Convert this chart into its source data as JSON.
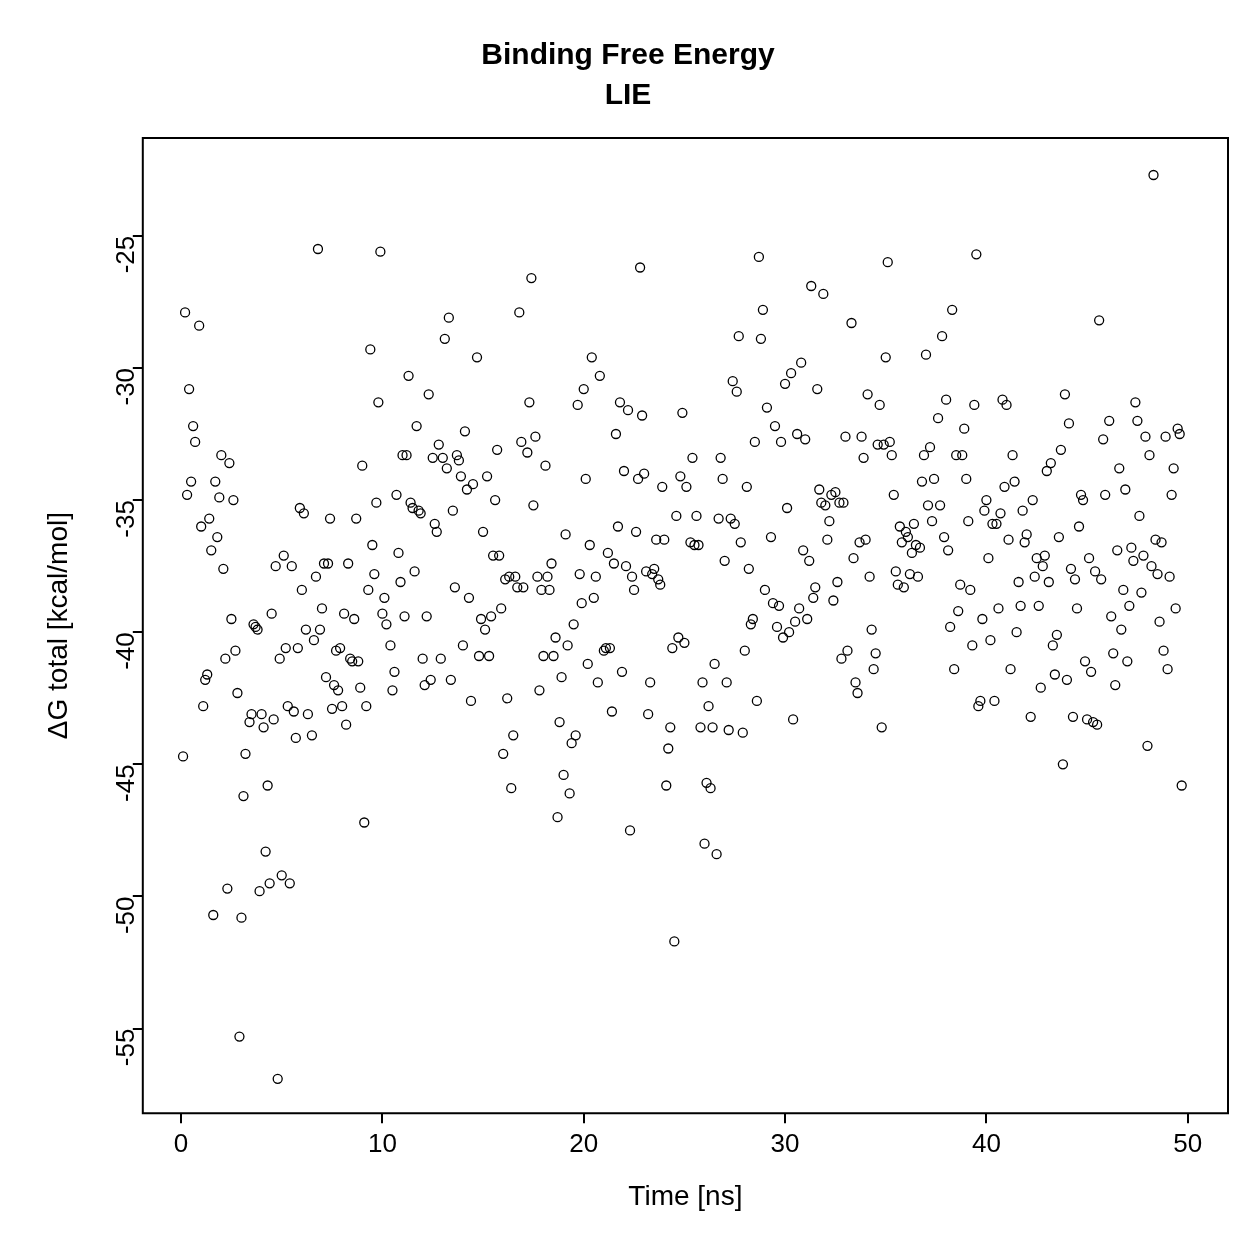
{
  "chart_data": {
    "type": "scatter",
    "title": "Binding Free Energy",
    "subtitle": "LIE",
    "xlabel": "Time [ns]",
    "ylabel": "ΔG total [kcal/mol]",
    "xlim": [
      -1.9,
      52
    ],
    "ylim": [
      -58.2,
      -21.3
    ],
    "xticks": [
      0,
      10,
      20,
      30,
      40,
      50
    ],
    "yticks": [
      -55,
      -50,
      -45,
      -40,
      -35,
      -30,
      -25
    ],
    "marker": "circle",
    "series": [
      {
        "color": "#000000",
        "x": [
          0.1,
          0.2,
          0.3,
          0.4,
          0.5,
          0.6,
          0.7,
          0.9,
          1.0,
          1.1,
          1.2,
          1.3,
          1.4,
          1.5,
          1.6,
          1.7,
          1.8,
          1.9,
          2.0,
          2.1,
          2.2,
          2.3,
          2.4,
          2.5,
          2.6,
          2.7,
          2.8,
          2.9,
          3.0,
          3.1,
          3.2,
          3.4,
          3.5,
          3.6,
          3.7,
          3.8,
          3.9,
          4.0,
          4.1,
          4.2,
          4.3,
          4.4,
          4.5,
          4.6,
          4.7,
          4.8,
          4.9,
          5.0,
          5.1,
          5.2,
          5.3,
          5.4,
          5.5,
          5.6,
          5.7,
          5.8,
          5.9,
          6.0,
          6.1,
          6.2,
          6.3,
          6.5,
          6.6,
          6.7,
          6.8,
          6.9,
          7.0,
          7.1,
          7.2,
          7.3,
          7.4,
          7.5,
          7.6,
          7.7,
          7.8,
          7.9,
          8.0,
          8.1,
          8.2,
          8.3,
          8.4,
          8.5,
          8.6,
          8.7,
          8.8,
          8.9,
          9.0,
          9.1,
          9.2,
          9.3,
          9.4,
          9.5,
          9.6,
          9.7,
          9.8,
          9.9,
          10.0,
          10.1,
          10.2,
          10.4,
          10.5,
          10.6,
          10.7,
          10.8,
          10.9,
          11.0,
          11.1,
          11.2,
          11.3,
          11.4,
          11.5,
          11.6,
          11.7,
          11.8,
          11.9,
          12.0,
          12.1,
          12.2,
          12.3,
          12.4,
          12.5,
          12.6,
          12.7,
          12.8,
          12.9,
          13.0,
          13.1,
          13.2,
          13.3,
          13.4,
          13.5,
          13.6,
          13.7,
          13.8,
          13.9,
          14.0,
          14.1,
          14.2,
          14.3,
          14.4,
          14.5,
          14.7,
          14.8,
          14.9,
          15.0,
          15.1,
          15.2,
          15.3,
          15.4,
          15.5,
          15.6,
          15.7,
          15.8,
          15.9,
          16.0,
          16.1,
          16.2,
          16.3,
          16.4,
          16.5,
          16.6,
          16.7,
          16.8,
          16.9,
          17.0,
          17.2,
          17.3,
          17.4,
          17.5,
          17.6,
          17.7,
          17.8,
          17.9,
          18.0,
          18.1,
          18.2,
          18.3,
          18.4,
          18.5,
          18.6,
          18.7,
          18.8,
          18.9,
          19.0,
          19.1,
          19.2,
          19.3,
          19.4,
          19.5,
          19.6,
          19.7,
          19.8,
          19.9,
          20.0,
          20.1,
          20.2,
          20.3,
          20.4,
          20.5,
          20.6,
          20.7,
          20.8,
          21.0,
          21.1,
          21.2,
          21.3,
          21.4,
          21.5,
          21.6,
          21.7,
          21.8,
          21.9,
          22.0,
          22.1,
          22.2,
          22.3,
          22.4,
          22.5,
          22.6,
          22.7,
          22.8,
          22.9,
          23.0,
          23.1,
          23.2,
          23.3,
          23.4,
          23.5,
          23.6,
          23.7,
          23.8,
          23.9,
          24.0,
          24.1,
          24.2,
          24.3,
          24.4,
          24.5,
          24.6,
          24.7,
          24.8,
          24.9,
          25.0,
          25.1,
          25.3,
          25.4,
          25.5,
          25.6,
          25.7,
          25.8,
          25.9,
          26.0,
          26.1,
          26.2,
          26.3,
          26.4,
          26.5,
          26.6,
          26.7,
          26.8,
          26.9,
          27.0,
          27.1,
          27.2,
          27.3,
          27.4,
          27.5,
          27.6,
          27.7,
          27.8,
          27.9,
          28.0,
          28.1,
          28.2,
          28.3,
          28.4,
          28.5,
          28.6,
          28.7,
          28.8,
          28.9,
          29.0,
          29.1,
          29.3,
          29.4,
          29.5,
          29.6,
          29.7,
          29.8,
          29.9,
          30.0,
          30.1,
          30.2,
          30.3,
          30.4,
          30.5,
          30.6,
          30.7,
          30.8,
          30.9,
          31.0,
          31.1,
          31.2,
          31.3,
          31.4,
          31.5,
          31.6,
          31.7,
          31.8,
          31.9,
          32.0,
          32.1,
          32.2,
          32.3,
          32.4,
          32.5,
          32.6,
          32.7,
          32.8,
          32.9,
          33.0,
          33.1,
          33.3,
          33.4,
          33.5,
          33.6,
          33.7,
          33.8,
          33.9,
          34.0,
          34.1,
          34.2,
          34.3,
          34.4,
          34.5,
          34.6,
          34.7,
          34.8,
          34.9,
          35.0,
          35.1,
          35.2,
          35.3,
          35.4,
          35.5,
          35.6,
          35.7,
          35.8,
          35.9,
          36.0,
          36.1,
          36.2,
          36.3,
          36.4,
          36.5,
          36.6,
          36.7,
          36.8,
          36.9,
          37.0,
          37.1,
          37.2,
          37.3,
          37.4,
          37.6,
          37.7,
          37.8,
          37.9,
          38.0,
          38.1,
          38.2,
          38.3,
          38.4,
          38.5,
          38.6,
          38.7,
          38.8,
          38.9,
          39.0,
          39.1,
          39.2,
          39.3,
          39.4,
          39.5,
          39.6,
          39.7,
          39.8,
          39.9,
          40.0,
          40.1,
          40.2,
          40.3,
          40.4,
          40.5,
          40.6,
          40.7,
          40.8,
          40.9,
          41.0,
          41.1,
          41.2,
          41.3,
          41.4,
          41.5,
          41.6,
          41.7,
          41.8,
          41.9,
          42.0,
          42.2,
          42.3,
          42.4,
          42.5,
          42.6,
          42.7,
          42.8,
          42.9,
          43.0,
          43.1,
          43.2,
          43.3,
          43.4,
          43.5,
          43.6,
          43.7,
          43.8,
          43.9,
          44.0,
          44.1,
          44.2,
          44.3,
          44.4,
          44.5,
          44.6,
          44.7,
          44.8,
          44.9,
          45.0,
          45.1,
          45.2,
          45.3,
          45.4,
          45.5,
          45.6,
          45.7,
          45.8,
          45.9,
          46.1,
          46.2,
          46.3,
          46.4,
          46.5,
          46.6,
          46.7,
          46.8,
          46.9,
          47.0,
          47.1,
          47.2,
          47.3,
          47.4,
          47.5,
          47.6,
          47.7,
          47.8,
          47.9,
          48.0,
          48.1,
          48.2,
          48.3,
          48.4,
          48.5,
          48.6,
          48.7,
          48.8,
          48.9,
          49.0,
          49.1,
          49.2,
          49.3,
          49.4,
          49.5,
          49.6,
          49.7
        ],
        "values": [
          -44.7,
          -27.9,
          -34.8,
          -30.8,
          -34.3,
          -32.2,
          -32.8,
          -28.4,
          -36.0,
          -42.8,
          -41.8,
          -41.6,
          -35.7,
          -36.9,
          -50.7,
          -34.3,
          -36.4,
          -34.9,
          -33.3,
          -37.6,
          -41.0,
          -49.7,
          -33.6,
          -39.5,
          -35.0,
          -40.7,
          -42.3,
          -55.3,
          -50.8,
          -46.2,
          -44.6,
          -43.4,
          -43.1,
          -39.7,
          -39.8,
          -39.9,
          -49.8,
          -43.1,
          -43.6,
          -48.3,
          -45.8,
          -49.5,
          -39.3,
          -43.3,
          -37.5,
          -56.9,
          -41.0,
          -49.2,
          -37.1,
          -40.6,
          -42.8,
          -49.5,
          -37.5,
          -43.0,
          -44.0,
          -40.6,
          -35.3,
          -38.4,
          -35.5,
          -39.9,
          -43.1,
          -43.9,
          -40.3,
          -37.9,
          -25.5,
          -39.9,
          -39.1,
          -37.4,
          -41.7,
          -37.4,
          -35.7,
          -42.9,
          -42.0,
          -40.7,
          -42.2,
          -40.6,
          -42.8,
          -39.3,
          -43.5,
          -37.4,
          -41.0,
          -41.1,
          -39.5,
          -35.7,
          -41.1,
          -42.1,
          -33.7,
          -47.2,
          -42.8,
          -38.4,
          -29.3,
          -36.7,
          -37.8,
          -35.1,
          -31.3,
          -25.6,
          -39.3,
          -38.7,
          -39.7,
          -40.5,
          -42.2,
          -41.5,
          -34.8,
          -37.0,
          -38.1,
          -33.3,
          -39.4,
          -33.3,
          -30.3,
          -35.1,
          -35.3,
          -37.7,
          -32.2,
          -35.4,
          -35.5,
          -41.0,
          -42.0,
          -39.4,
          -31.0,
          -41.8,
          -33.4,
          -35.9,
          -36.2,
          -32.9,
          -41.0,
          -33.4,
          -28.9,
          -33.8,
          -28.1,
          -41.8,
          -35.4,
          -38.3,
          -33.3,
          -33.5,
          -34.1,
          -40.5,
          -32.4,
          -34.6,
          -38.7,
          -42.6,
          -34.4,
          -29.6,
          -40.9,
          -39.5,
          -36.2,
          -39.9,
          -34.1,
          -40.9,
          -39.4,
          -37.1,
          -35.0,
          -33.1,
          -37.1,
          -39.1,
          -44.6,
          -38.0,
          -42.5,
          -37.9,
          -45.9,
          -43.9,
          -37.9,
          -38.3,
          -27.9,
          -32.8,
          -38.3,
          -33.2,
          -31.3,
          -26.6,
          -35.2,
          -32.6,
          -37.9,
          -42.2,
          -38.4,
          -40.9,
          -33.7,
          -37.9,
          -38.4,
          -37.4,
          -40.9,
          -40.2,
          -47.0,
          -43.4,
          -41.7,
          -45.4,
          -36.3,
          -40.5,
          -46.1,
          -44.2,
          -39.7,
          -43.9,
          -31.4,
          -37.8,
          -38.9,
          -30.8,
          -34.2,
          -41.2,
          -36.7,
          -29.6,
          -38.7,
          -37.9,
          -41.9,
          -30.3,
          -40.7,
          -40.6,
          -37.0,
          -40.6,
          -43.0,
          -37.4,
          -32.5,
          -36.0,
          -31.3,
          -41.5,
          -33.9,
          -37.5,
          -31.6,
          -47.5,
          -37.9,
          -38.4,
          -36.2,
          -34.2,
          -26.2,
          -31.8,
          -34.0,
          -37.7,
          -43.1,
          -41.9,
          -37.8,
          -37.6,
          -36.5,
          -38.0,
          -38.2,
          -34.5,
          -36.5,
          -45.8,
          -44.4,
          -43.6,
          -40.6,
          -51.7,
          -35.6,
          -40.2,
          -34.1,
          -31.7,
          -40.4,
          -34.5,
          -36.6,
          -33.4,
          -36.7,
          -35.6,
          -36.7,
          -43.6,
          -41.9,
          -48.0,
          -45.7,
          -42.8,
          -45.9,
          -43.6,
          -41.2,
          -48.4,
          -35.7,
          -33.4,
          -34.2,
          -37.3,
          -41.9,
          -43.7,
          -35.7,
          -30.5,
          -35.9,
          -30.9,
          -28.8,
          -36.6,
          -43.8,
          -40.7,
          -34.5,
          -37.6,
          -39.7,
          -39.5,
          -32.8,
          -42.6,
          -25.8,
          -28.9,
          -27.8,
          -38.4,
          -31.5,
          -36.4,
          -38.9,
          -32.2,
          -39.8,
          -39.0,
          -32.8,
          -40.2,
          -30.6,
          -35.3,
          -40.0,
          -30.2,
          -43.3,
          -39.6,
          -32.5,
          -39.1,
          -29.8,
          -36.9,
          -32.7,
          -39.5,
          -37.3,
          -26.9,
          -38.7,
          -38.3,
          -30.8,
          -34.6,
          -35.1,
          -27.2,
          -35.2,
          -36.5,
          -35.8,
          -34.8,
          -38.8,
          -34.7,
          -38.1,
          -35.1,
          -41.0,
          -35.1,
          -32.6,
          -40.7,
          -28.3,
          -37.2,
          -41.9,
          -42.3,
          -36.6,
          -32.6,
          -33.4,
          -36.5,
          -31.0,
          -37.9,
          -39.9,
          -41.4,
          -40.8,
          -32.9,
          -31.4,
          -43.6,
          -32.9,
          -29.6,
          -26.0,
          -32.8,
          -33.3,
          -34.8,
          -37.7,
          -38.2,
          -36.0,
          -36.6,
          -38.3,
          -36.2,
          -36.4,
          -37.8,
          -37.0,
          -35.9,
          -36.7,
          -37.9,
          -36.8,
          -34.3,
          -33.3,
          -29.5,
          -35.2,
          -33.0,
          -35.8,
          -34.2,
          -31.9,
          -35.2,
          -28.8,
          -36.4,
          -31.2,
          -36.9,
          -39.8,
          -27.8,
          -41.4,
          -33.3,
          -39.2,
          -38.2,
          -33.3,
          -32.3,
          -34.2,
          -35.8,
          -38.4,
          -40.5,
          -31.4,
          -25.7,
          -42.8,
          -42.6,
          -39.5,
          -35.4,
          -35.0,
          -37.2,
          -40.3,
          -35.9,
          -42.6,
          -35.9,
          -39.1,
          -35.5,
          -31.2,
          -34.5,
          -31.4,
          -36.5,
          -41.4,
          -33.3,
          -34.3,
          -40.0,
          -38.1,
          -39.0,
          -35.4,
          -36.6,
          -36.3,
          -43.2,
          -35.0,
          -37.9,
          -37.2,
          -39.0,
          -42.1,
          -37.5,
          -37.1,
          -33.9,
          -38.1,
          -33.6,
          -40.5,
          -41.6,
          -40.1,
          -36.4,
          -33.1,
          -45.0,
          -31.0,
          -41.8,
          -32.1,
          -37.6,
          -43.2,
          -38.0,
          -39.1,
          -36.0,
          -34.8,
          -35.0,
          -41.1,
          -43.3,
          -37.2,
          -41.5,
          -43.4,
          -37.7,
          -43.5,
          -28.2,
          -38.0,
          -32.7,
          -34.8,
          -32.0,
          -39.4,
          -40.8,
          -42.0,
          -36.9,
          -33.8,
          -39.9,
          -38.4,
          -34.6,
          -41.1,
          -39.0,
          -36.8,
          -37.3,
          -31.3,
          -32.0,
          -35.6,
          -38.5,
          -37.1,
          -32.6,
          -44.3,
          -33.3,
          -37.5,
          -22.7,
          -36.5,
          -37.8,
          -39.6,
          -36.6,
          -40.7,
          -32.6,
          -41.4,
          -37.9,
          -34.8,
          -33.8,
          -39.1,
          -32.3,
          -32.5,
          -45.8
        ]
      }
    ]
  }
}
